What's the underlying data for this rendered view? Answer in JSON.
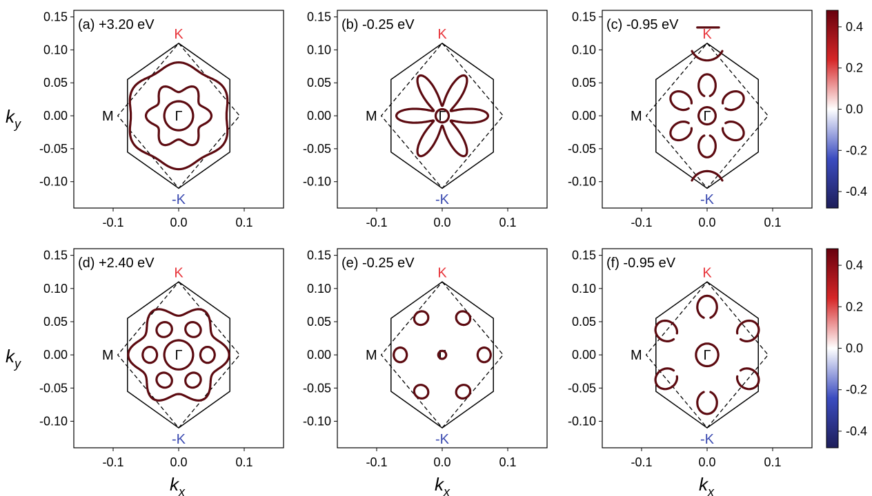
{
  "figure": {
    "ylabel_main": "k",
    "ylabel_sub": "y",
    "xlabel_main": "k",
    "xlabel_sub": "x"
  },
  "colorbar": {
    "ticks": [
      "0.4",
      "0.2",
      "0.0",
      "-0.2",
      "-0.4"
    ],
    "tick_values": [
      0.4,
      0.2,
      0.0,
      -0.2,
      -0.4
    ],
    "range": [
      -0.48,
      0.48
    ],
    "colors": [
      "#1e1e5a",
      "#3b4cc0",
      "#ffffff",
      "#d62728",
      "#67000d"
    ]
  },
  "colors": {
    "K_label": "#e8343a",
    "negK_label": "#3a4ab0",
    "curve": "#5c0a10",
    "frame": "#000000"
  },
  "chart_data": [
    {
      "type": "scatter",
      "title": "(a) +3.20 eV",
      "xlabel": "",
      "ylabel": "",
      "xlim": [
        -0.16,
        0.16
      ],
      "ylim": [
        -0.14,
        0.16
      ],
      "xticks": [
        "-0.1",
        "0.0",
        "0.1"
      ],
      "yticks": [
        "0.15",
        "0.10",
        "0.05",
        "0.00",
        "-0.05",
        "-0.10"
      ],
      "point_labels": {
        "K": "K",
        "negK": "-K",
        "M": "M",
        "Gamma": "Γ"
      },
      "curves": [
        {
          "kind": "circle",
          "r": 0.022
        },
        {
          "kind": "star",
          "r0": 0.043,
          "amp": 0.007,
          "n": 6,
          "phase": 0.0
        },
        {
          "kind": "star",
          "r0": 0.077,
          "amp": 0.004,
          "n": 6,
          "phase": 0.5236
        }
      ]
    },
    {
      "type": "scatter",
      "title": "(b) -0.25 eV",
      "xlabel": "",
      "ylabel": "",
      "xlim": [
        -0.16,
        0.16
      ],
      "ylim": [
        -0.14,
        0.16
      ],
      "xticks": [
        "-0.1",
        "0.0",
        "0.1"
      ],
      "yticks": [
        "0.15",
        "0.10",
        "0.05",
        "0.00",
        "-0.05",
        "-0.10"
      ],
      "point_labels": {
        "K": "K",
        "negK": "-K",
        "M": "M",
        "Gamma": "Γ"
      },
      "curves": [
        {
          "kind": "circle",
          "r": 0.01
        },
        {
          "kind": "flower",
          "rmin": 0.015,
          "rmax": 0.07,
          "n": 6,
          "phase": 0.0
        }
      ]
    },
    {
      "type": "scatter",
      "title": "(c) -0.95 eV",
      "xlabel": "",
      "ylabel": "",
      "xlim": [
        -0.16,
        0.16
      ],
      "ylim": [
        -0.14,
        0.16
      ],
      "xticks": [
        "-0.1",
        "0.0",
        "0.1"
      ],
      "yticks": [
        "0.15",
        "0.10",
        "0.05",
        "0.00",
        "-0.05",
        "-0.10"
      ],
      "point_labels": {
        "K": "K",
        "negK": "-K",
        "M": "M",
        "Gamma": "Γ"
      },
      "curves": [
        {
          "kind": "circle",
          "r": 0.013
        },
        {
          "kind": "loops",
          "dist": 0.046,
          "rx": 0.017,
          "ry": 0.013,
          "n": 6,
          "phase": 0.5236,
          "open": true
        },
        {
          "kind": "arcsK",
          "r": 0.026
        }
      ]
    },
    {
      "type": "scatter",
      "title": "(d) +2.40 eV",
      "xlabel": "",
      "ylabel": "",
      "xlim": [
        -0.16,
        0.16
      ],
      "ylim": [
        -0.14,
        0.16
      ],
      "xticks": [
        "-0.1",
        "0.0",
        "0.1"
      ],
      "yticks": [
        "0.15",
        "0.10",
        "0.05",
        "0.00",
        "-0.05",
        "-0.10"
      ],
      "point_labels": {
        "K": "K",
        "negK": "-K",
        "M": "M",
        "Gamma": "Γ"
      },
      "curves": [
        {
          "kind": "circle",
          "r": 0.022
        },
        {
          "kind": "loops",
          "dist": 0.044,
          "rx": 0.011,
          "ry": 0.012,
          "n": 6,
          "phase": 0.0,
          "open": false
        },
        {
          "kind": "star",
          "r0": 0.068,
          "amp": 0.009,
          "n": 6,
          "phase": 0.0
        }
      ]
    },
    {
      "type": "scatter",
      "title": "(e) -0.25 eV",
      "xlabel": "",
      "ylabel": "",
      "xlim": [
        -0.16,
        0.16
      ],
      "ylim": [
        -0.14,
        0.16
      ],
      "xticks": [
        "-0.1",
        "0.0",
        "0.1"
      ],
      "yticks": [
        "0.15",
        "0.10",
        "0.05",
        "0.00",
        "-0.05",
        "-0.10"
      ],
      "point_labels": {
        "K": "K",
        "negK": "-K",
        "M": "M",
        "Gamma": "Γ"
      },
      "curves": [
        {
          "kind": "circle",
          "r": 0.006
        },
        {
          "kind": "loops",
          "dist": 0.064,
          "rx": 0.01,
          "ry": 0.011,
          "n": 6,
          "phase": 0.0,
          "open": false
        }
      ]
    },
    {
      "type": "scatter",
      "title": "(f) -0.95 eV",
      "xlabel": "",
      "ylabel": "",
      "xlim": [
        -0.16,
        0.16
      ],
      "ylim": [
        -0.14,
        0.16
      ],
      "xticks": [
        "-0.1",
        "0.0",
        "0.1"
      ],
      "yticks": [
        "0.15",
        "0.10",
        "0.05",
        "0.00",
        "-0.05",
        "-0.10"
      ],
      "point_labels": {
        "K": "K",
        "negK": "-K",
        "M": "M",
        "Gamma": "Γ"
      },
      "curves": [
        {
          "kind": "circle",
          "r": 0.017
        },
        {
          "kind": "loops",
          "dist": 0.072,
          "rx": 0.017,
          "ry": 0.015,
          "n": 6,
          "phase": 0.5236,
          "open": true
        }
      ]
    }
  ]
}
